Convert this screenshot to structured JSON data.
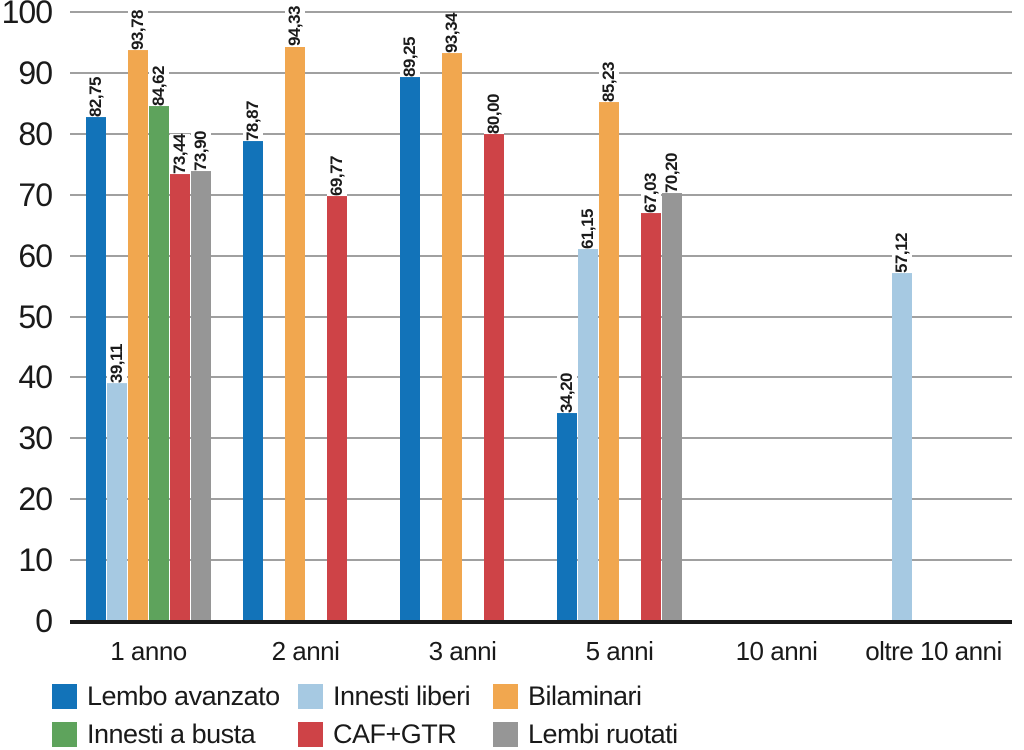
{
  "figure": {
    "background": "#ffffff",
    "text_color": "#1a1a1a",
    "gridline_color": "#a0a0a0",
    "axis_color": "#1a1a1a"
  },
  "chart_data": {
    "type": "bar",
    "title": "",
    "xlabel": "",
    "ylabel": "",
    "categories": [
      "1 anno",
      "2 anni",
      "3 anni",
      "5 anni",
      "10 anni",
      "oltre 10 anni"
    ],
    "series": [
      {
        "name": "Lembo avanzato",
        "color": "#1273b9",
        "values": [
          82.75,
          78.87,
          89.25,
          34.2,
          null,
          null
        ]
      },
      {
        "name": "Innesti liberi",
        "color": "#a6c9e2",
        "values": [
          39.11,
          null,
          null,
          61.15,
          null,
          57.12
        ]
      },
      {
        "name": "Bilaminari",
        "color": "#f1a74f",
        "values": [
          93.78,
          94.33,
          93.34,
          85.23,
          null,
          null
        ]
      },
      {
        "name": "Innesti a busta",
        "color": "#5ea35c",
        "values": [
          84.62,
          null,
          null,
          null,
          null,
          null
        ]
      },
      {
        "name": "CAF+GTR",
        "color": "#ce4347",
        "values": [
          73.44,
          69.77,
          80.0,
          67.03,
          null,
          null
        ]
      },
      {
        "name": "Lembi ruotati",
        "color": "#969696",
        "values": [
          73.9,
          null,
          null,
          70.2,
          null,
          null
        ]
      }
    ],
    "value_labels": {
      "decimal_separator": ",",
      "decimals": 2,
      "rotation": "vertical-bottom-to-top"
    },
    "yticks": [
      0,
      10,
      20,
      30,
      40,
      50,
      60,
      70,
      80,
      90,
      100
    ],
    "ylim": [
      0,
      100
    ],
    "grid": true,
    "legend_position": "bottom",
    "legend_rows": 2,
    "legend_columns": 3
  }
}
